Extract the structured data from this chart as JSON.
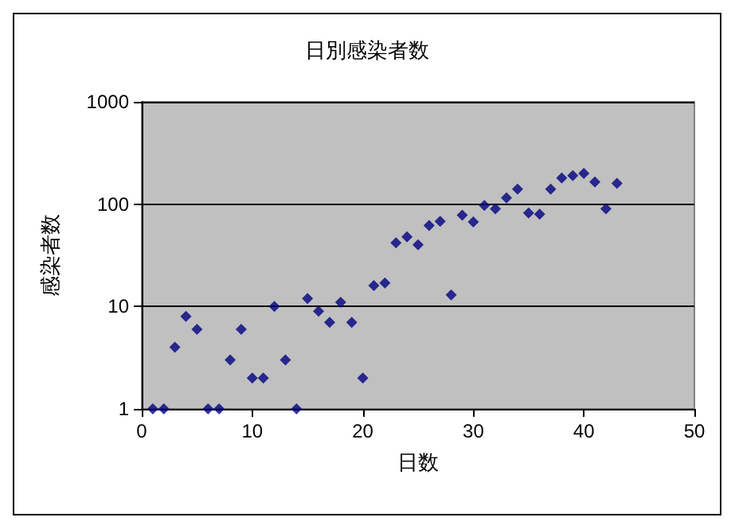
{
  "chart_data": {
    "type": "scatter",
    "title": "日別感染者数",
    "xlabel": "日数",
    "ylabel": "感染者数",
    "x": [
      1,
      2,
      3,
      4,
      5,
      6,
      7,
      8,
      9,
      10,
      11,
      12,
      13,
      14,
      15,
      16,
      17,
      18,
      19,
      20,
      21,
      22,
      23,
      24,
      25,
      26,
      27,
      28,
      29,
      30,
      31,
      32,
      33,
      34,
      35,
      36,
      37,
      38,
      39,
      40,
      41,
      42,
      43
    ],
    "series": [
      {
        "color": "#000080",
        "values": [
          1,
          1,
          4,
          8,
          6,
          1,
          1,
          3,
          6,
          2,
          2,
          10,
          3,
          1,
          12,
          9,
          7,
          11,
          7,
          2,
          16,
          17,
          42,
          48,
          40,
          62,
          68,
          13,
          78,
          67,
          97,
          90,
          115,
          140,
          82,
          80,
          140,
          180,
          190,
          200,
          165,
          90,
          160
        ]
      }
    ],
    "xlim": [
      0,
      50
    ],
    "xticks": [
      0,
      10,
      20,
      30,
      40,
      50
    ],
    "ylim": [
      1,
      1000
    ],
    "yticks": [
      1,
      10,
      100,
      1000
    ],
    "log": "y",
    "grid": "y",
    "marker": "diamond"
  }
}
